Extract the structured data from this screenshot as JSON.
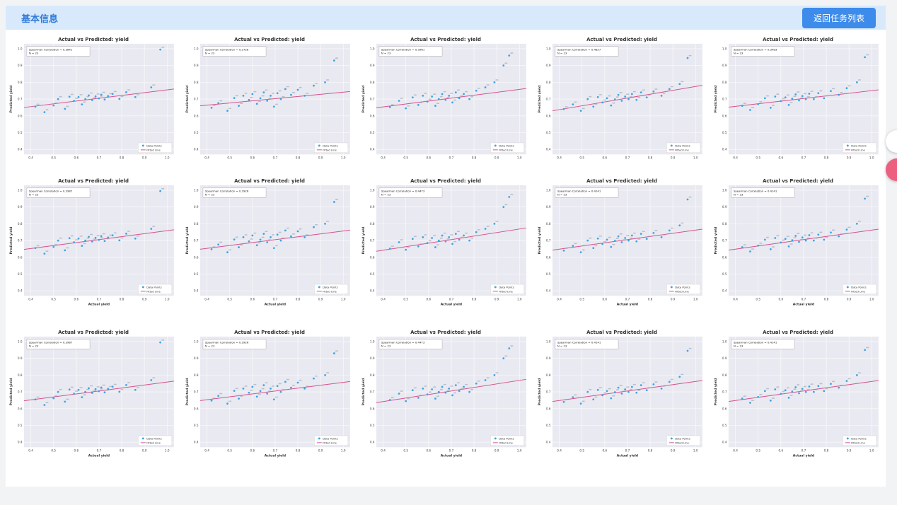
{
  "header": {
    "title": "基本信息",
    "back_button": "返回任务列表",
    "accent_color": "#3d8bea",
    "bar_color": "#d8e9fc"
  },
  "floating_buttons": [
    {
      "name": "white-circle-button"
    },
    {
      "name": "pink-circle-button",
      "color": "#ed5f7f"
    }
  ],
  "chart_style": {
    "plot_bg": "#e9e9f1",
    "point_color": "#3da4e3",
    "line_color": "#d4538c",
    "grid_color": "#ffffff"
  },
  "chart_shared": {
    "type": "scatter",
    "title": "Actual vs Predicted: yield",
    "ylabel": "Predicted yield",
    "xlabel": "Actual yield",
    "ticks": [
      0.4,
      0.5,
      0.6,
      0.7,
      0.8,
      0.9,
      1.0
    ],
    "xlim": [
      0.37,
      1.03
    ],
    "ylim": [
      0.37,
      1.03
    ],
    "legend": [
      "Data Points",
      "Fitted Line"
    ],
    "corr_label": "Spearman Correlation",
    "n_label": "N",
    "n": "23"
  },
  "point_sets": {
    "A": [
      [
        0.42,
        0.655
      ],
      [
        0.46,
        0.622
      ],
      [
        0.5,
        0.662
      ],
      [
        0.52,
        0.7
      ],
      [
        0.55,
        0.642
      ],
      [
        0.57,
        0.714
      ],
      [
        0.59,
        0.69
      ],
      [
        0.61,
        0.712
      ],
      [
        0.625,
        0.668
      ],
      [
        0.64,
        0.7
      ],
      [
        0.655,
        0.722
      ],
      [
        0.67,
        0.694
      ],
      [
        0.685,
        0.716
      ],
      [
        0.7,
        0.704
      ],
      [
        0.71,
        0.726
      ],
      [
        0.725,
        0.697
      ],
      [
        0.74,
        0.718
      ],
      [
        0.76,
        0.731
      ],
      [
        0.79,
        0.701
      ],
      [
        0.82,
        0.741
      ],
      [
        0.86,
        0.712
      ],
      [
        0.93,
        0.77
      ],
      [
        0.97,
        0.995
      ]
    ],
    "B": [
      [
        0.42,
        0.648
      ],
      [
        0.45,
        0.676
      ],
      [
        0.49,
        0.63
      ],
      [
        0.52,
        0.706
      ],
      [
        0.54,
        0.66
      ],
      [
        0.56,
        0.72
      ],
      [
        0.585,
        0.695
      ],
      [
        0.6,
        0.73
      ],
      [
        0.62,
        0.672
      ],
      [
        0.635,
        0.705
      ],
      [
        0.65,
        0.74
      ],
      [
        0.665,
        0.69
      ],
      [
        0.68,
        0.72
      ],
      [
        0.695,
        0.655
      ],
      [
        0.71,
        0.735
      ],
      [
        0.725,
        0.7
      ],
      [
        0.745,
        0.76
      ],
      [
        0.77,
        0.725
      ],
      [
        0.8,
        0.755
      ],
      [
        0.83,
        0.72
      ],
      [
        0.87,
        0.78
      ],
      [
        0.92,
        0.8
      ],
      [
        0.96,
        0.93
      ]
    ],
    "C": [
      [
        0.43,
        0.652
      ],
      [
        0.47,
        0.69
      ],
      [
        0.5,
        0.645
      ],
      [
        0.53,
        0.71
      ],
      [
        0.555,
        0.665
      ],
      [
        0.575,
        0.72
      ],
      [
        0.595,
        0.685
      ],
      [
        0.615,
        0.715
      ],
      [
        0.63,
        0.66
      ],
      [
        0.645,
        0.7
      ],
      [
        0.66,
        0.73
      ],
      [
        0.675,
        0.695
      ],
      [
        0.69,
        0.72
      ],
      [
        0.705,
        0.68
      ],
      [
        0.72,
        0.74
      ],
      [
        0.735,
        0.705
      ],
      [
        0.755,
        0.73
      ],
      [
        0.78,
        0.7
      ],
      [
        0.81,
        0.75
      ],
      [
        0.85,
        0.77
      ],
      [
        0.89,
        0.8
      ],
      [
        0.93,
        0.9
      ],
      [
        0.955,
        0.96
      ]
    ],
    "D": [
      [
        0.42,
        0.64
      ],
      [
        0.46,
        0.668
      ],
      [
        0.495,
        0.63
      ],
      [
        0.525,
        0.7
      ],
      [
        0.55,
        0.655
      ],
      [
        0.57,
        0.712
      ],
      [
        0.59,
        0.68
      ],
      [
        0.61,
        0.705
      ],
      [
        0.628,
        0.662
      ],
      [
        0.645,
        0.698
      ],
      [
        0.66,
        0.725
      ],
      [
        0.675,
        0.69
      ],
      [
        0.69,
        0.715
      ],
      [
        0.705,
        0.7
      ],
      [
        0.72,
        0.73
      ],
      [
        0.74,
        0.695
      ],
      [
        0.76,
        0.74
      ],
      [
        0.785,
        0.71
      ],
      [
        0.815,
        0.745
      ],
      [
        0.85,
        0.72
      ],
      [
        0.885,
        0.76
      ],
      [
        0.93,
        0.79
      ],
      [
        0.965,
        0.945
      ]
    ],
    "E": [
      [
        0.43,
        0.66
      ],
      [
        0.465,
        0.635
      ],
      [
        0.5,
        0.67
      ],
      [
        0.53,
        0.705
      ],
      [
        0.555,
        0.648
      ],
      [
        0.575,
        0.715
      ],
      [
        0.6,
        0.688
      ],
      [
        0.62,
        0.71
      ],
      [
        0.635,
        0.665
      ],
      [
        0.65,
        0.702
      ],
      [
        0.665,
        0.728
      ],
      [
        0.68,
        0.692
      ],
      [
        0.695,
        0.718
      ],
      [
        0.71,
        0.7
      ],
      [
        0.725,
        0.732
      ],
      [
        0.745,
        0.7
      ],
      [
        0.765,
        0.735
      ],
      [
        0.79,
        0.705
      ],
      [
        0.82,
        0.748
      ],
      [
        0.855,
        0.725
      ],
      [
        0.89,
        0.765
      ],
      [
        0.935,
        0.8
      ],
      [
        0.97,
        0.95
      ]
    ]
  },
  "chart_data": [
    {
      "type": "scatter",
      "row": 1,
      "col": 1,
      "points_set": "A",
      "spearman": "0.3841",
      "fit": [
        0.65,
        0.76
      ],
      "show_xlabel": false
    },
    {
      "type": "scatter",
      "row": 1,
      "col": 2,
      "points_set": "B",
      "spearman": "0.2728",
      "fit": [
        0.66,
        0.745
      ],
      "show_xlabel": false
    },
    {
      "type": "scatter",
      "row": 1,
      "col": 3,
      "points_set": "C",
      "spearman": "0.3961",
      "fit": [
        0.648,
        0.763
      ],
      "show_xlabel": false
    },
    {
      "type": "scatter",
      "row": 1,
      "col": 4,
      "points_set": "D",
      "spearman": "0.4827",
      "fit": [
        0.63,
        0.782
      ],
      "show_xlabel": false
    },
    {
      "type": "scatter",
      "row": 1,
      "col": 5,
      "points_set": "E",
      "spearman": "0.3483",
      "fit": [
        0.652,
        0.755
      ],
      "show_xlabel": false
    },
    {
      "type": "scatter",
      "row": 2,
      "col": 1,
      "points_set": "A",
      "spearman": "0.3987",
      "fit": [
        0.647,
        0.764
      ],
      "show_xlabel": true
    },
    {
      "type": "scatter",
      "row": 2,
      "col": 2,
      "points_set": "B",
      "spearman": "0.3926",
      "fit": [
        0.648,
        0.762
      ],
      "show_xlabel": true
    },
    {
      "type": "scatter",
      "row": 2,
      "col": 3,
      "points_set": "C",
      "spearman": "0.4473",
      "fit": [
        0.636,
        0.775
      ],
      "show_xlabel": true
    },
    {
      "type": "scatter",
      "row": 2,
      "col": 4,
      "points_set": "D",
      "spearman": "0.4141",
      "fit": [
        0.643,
        0.768
      ],
      "show_xlabel": true
    },
    {
      "type": "scatter",
      "row": 2,
      "col": 5,
      "points_set": "E",
      "spearman": "0.4141",
      "fit": [
        0.643,
        0.768
      ],
      "show_xlabel": true
    },
    {
      "type": "scatter",
      "row": 3,
      "col": 1,
      "points_set": "A",
      "spearman": "0.3987",
      "fit": [
        0.647,
        0.764
      ],
      "show_xlabel": true
    },
    {
      "type": "scatter",
      "row": 3,
      "col": 2,
      "points_set": "B",
      "spearman": "0.3926",
      "fit": [
        0.648,
        0.762
      ],
      "show_xlabel": true
    },
    {
      "type": "scatter",
      "row": 3,
      "col": 3,
      "points_set": "C",
      "spearman": "0.4473",
      "fit": [
        0.636,
        0.775
      ],
      "show_xlabel": true
    },
    {
      "type": "scatter",
      "row": 3,
      "col": 4,
      "points_set": "D",
      "spearman": "0.4141",
      "fit": [
        0.643,
        0.768
      ],
      "show_xlabel": true
    },
    {
      "type": "scatter",
      "row": 3,
      "col": 5,
      "points_set": "E",
      "spearman": "0.4141",
      "fit": [
        0.643,
        0.768
      ],
      "show_xlabel": true
    }
  ]
}
